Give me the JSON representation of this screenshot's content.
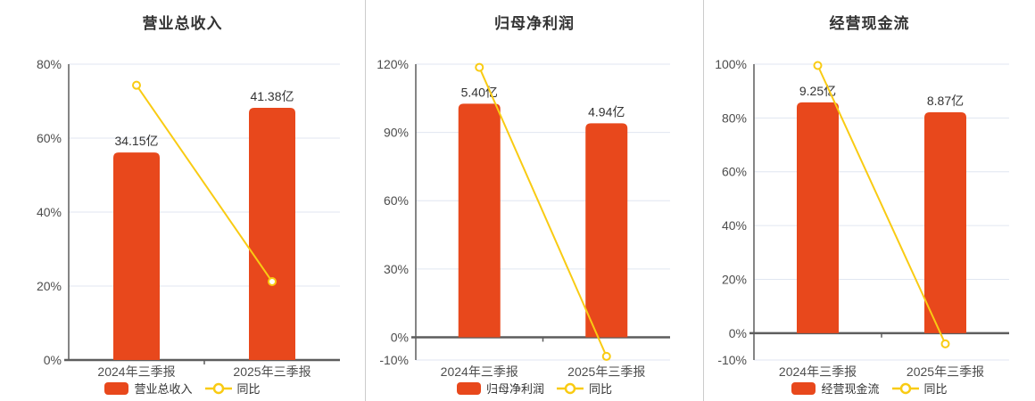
{
  "colors": {
    "bar": "#e8481c",
    "line": "#f9cb13",
    "grid": "#e0e6f1",
    "axis": "#5d5d5d",
    "tick_label": "#4d4d4d",
    "value_label": "#333333",
    "title": "#333333",
    "legend_text": "#333333",
    "separator": "#cccccc",
    "marker_fill": "#ffffff",
    "background": "#ffffff"
  },
  "chart_data": [
    {
      "type": "bar",
      "title": "营业总收入",
      "categories": [
        "2024年三季报",
        "2025年三季报"
      ],
      "bars": {
        "name": "营业总收入",
        "value_labels": [
          "34.15亿",
          "41.38亿"
        ],
        "values_yi": [
          34.15,
          41.38
        ],
        "display_axis_pct": [
          56.1,
          68.2
        ]
      },
      "line": {
        "name": "同比",
        "values_pct": [
          74.3,
          21.2
        ]
      },
      "ylim": [
        0,
        80
      ],
      "yticks": [
        0,
        20,
        40,
        60,
        80
      ],
      "ytick_suffix": "%",
      "grid": true,
      "legend_position": "bottom"
    },
    {
      "type": "bar",
      "title": "归母净利润",
      "categories": [
        "2024年三季报",
        "2025年三季报"
      ],
      "bars": {
        "name": "归母净利润",
        "value_labels": [
          "5.40亿",
          "4.94亿"
        ],
        "values_yi": [
          5.4,
          4.94
        ],
        "display_axis_pct": [
          102.6,
          94.0
        ]
      },
      "line": {
        "name": "同比",
        "values_pct": [
          118.6,
          -8.4
        ]
      },
      "ylim": [
        -10,
        120
      ],
      "yticks": [
        -10,
        0,
        30,
        60,
        90,
        120
      ],
      "ytick_suffix": "%",
      "grid": true,
      "legend_position": "bottom"
    },
    {
      "type": "bar",
      "title": "经营现金流",
      "categories": [
        "2024年三季报",
        "2025年三季报"
      ],
      "bars": {
        "name": "经营现金流",
        "value_labels": [
          "9.25亿",
          "8.87亿"
        ],
        "values_yi": [
          9.25,
          8.87
        ],
        "display_axis_pct": [
          85.8,
          82.1
        ]
      },
      "line": {
        "name": "同比",
        "values_pct": [
          99.5,
          -4.0
        ]
      },
      "ylim": [
        -10,
        100
      ],
      "yticks": [
        -10,
        0,
        20,
        40,
        60,
        80,
        100
      ],
      "ytick_suffix": "%",
      "grid": true,
      "legend_position": "bottom"
    }
  ]
}
